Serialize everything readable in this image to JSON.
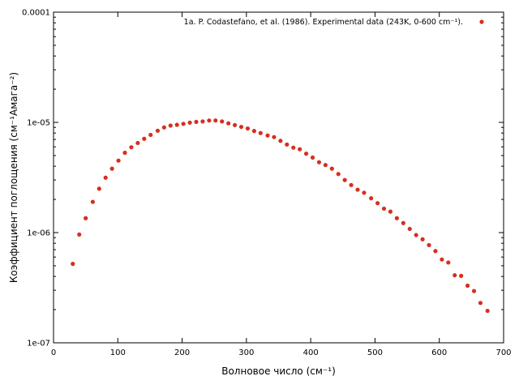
{
  "chart_data": {
    "type": "scatter",
    "title": "",
    "xlabel": "Волновое число (см⁻¹)",
    "ylabel": "Коэффициент поглощения (см⁻¹Амага⁻²)",
    "xlim": [
      0,
      700
    ],
    "ylim": [
      1e-07,
      0.0001
    ],
    "yscale": "log",
    "xticks": [
      0,
      100,
      200,
      300,
      400,
      500,
      600,
      700
    ],
    "yticks": [
      1e-07,
      1e-06,
      1e-05,
      0.0001
    ],
    "xtick_labels": [
      "0",
      "100",
      "200",
      "300",
      "400",
      "500",
      "600",
      "700"
    ],
    "ytick_labels": [
      "1e-07",
      "1e-06",
      "1e-05",
      "0.0001"
    ],
    "grid": false,
    "legend_position": "top-right",
    "series": [
      {
        "name": "1a. P. Codastefano, et al. (1986). Experimental data (243K, 0-600 cm⁻¹).",
        "color": "#d62f1f",
        "marker": "circle",
        "points": [
          [
            30,
            5.2e-07
          ],
          [
            40,
            9.6e-07
          ],
          [
            50,
            1.35e-06
          ],
          [
            61,
            1.9e-06
          ],
          [
            71,
            2.5e-06
          ],
          [
            81,
            3.15e-06
          ],
          [
            91,
            3.8e-06
          ],
          [
            101,
            4.5e-06
          ],
          [
            111,
            5.3e-06
          ],
          [
            121,
            5.95e-06
          ],
          [
            131,
            6.5e-06
          ],
          [
            141,
            7.1e-06
          ],
          [
            151,
            7.7e-06
          ],
          [
            162,
            8.4e-06
          ],
          [
            172,
            9e-06
          ],
          [
            182,
            9.35e-06
          ],
          [
            192,
            9.5e-06
          ],
          [
            202,
            9.7e-06
          ],
          [
            212,
            9.95e-06
          ],
          [
            222,
            1.01e-05
          ],
          [
            232,
            1.02e-05
          ],
          [
            242,
            1.04e-05
          ],
          [
            252,
            1.04e-05
          ],
          [
            262,
            1.02e-05
          ],
          [
            272,
            9.8e-06
          ],
          [
            282,
            9.45e-06
          ],
          [
            292,
            9.1e-06
          ],
          [
            302,
            8.8e-06
          ],
          [
            312,
            8.35e-06
          ],
          [
            322,
            8e-06
          ],
          [
            333,
            7.6e-06
          ],
          [
            343,
            7.35e-06
          ],
          [
            353,
            6.8e-06
          ],
          [
            363,
            6.3e-06
          ],
          [
            373,
            5.9e-06
          ],
          [
            383,
            5.7e-06
          ],
          [
            393,
            5.2e-06
          ],
          [
            403,
            4.8e-06
          ],
          [
            413,
            4.35e-06
          ],
          [
            423,
            4.1e-06
          ],
          [
            433,
            3.8e-06
          ],
          [
            443,
            3.4e-06
          ],
          [
            453,
            3e-06
          ],
          [
            463,
            2.7e-06
          ],
          [
            473,
            2.45e-06
          ],
          [
            483,
            2.3e-06
          ],
          [
            494,
            2.05e-06
          ],
          [
            504,
            1.85e-06
          ],
          [
            514,
            1.65e-06
          ],
          [
            524,
            1.55e-06
          ],
          [
            534,
            1.35e-06
          ],
          [
            544,
            1.22e-06
          ],
          [
            554,
            1.08e-06
          ],
          [
            564,
            9.5e-07
          ],
          [
            574,
            8.7e-07
          ],
          [
            584,
            7.7e-07
          ],
          [
            594,
            6.8e-07
          ],
          [
            604,
            5.7e-07
          ],
          [
            614,
            5.35e-07
          ],
          [
            624,
            4.1e-07
          ],
          [
            634,
            4.05e-07
          ],
          [
            644,
            3.3e-07
          ],
          [
            654,
            2.95e-07
          ],
          [
            664,
            2.3e-07
          ],
          [
            675,
            1.95e-07
          ]
        ]
      }
    ]
  }
}
